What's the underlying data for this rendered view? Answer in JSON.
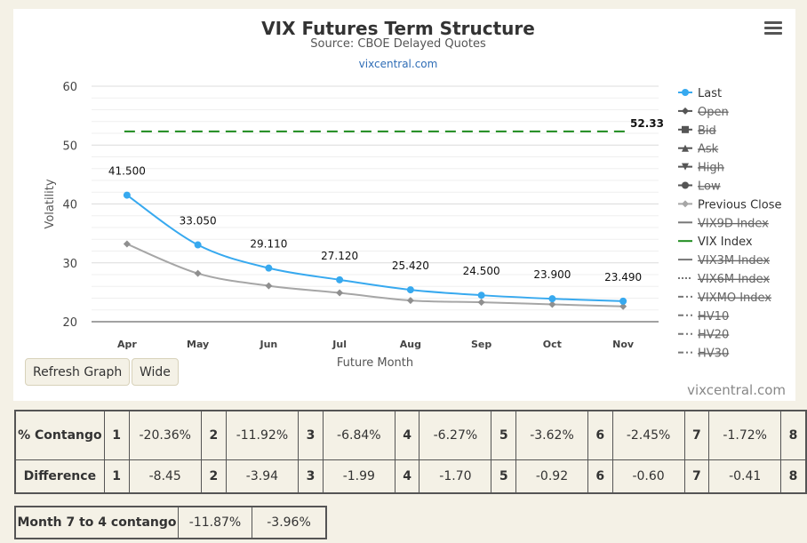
{
  "chart_data": {
    "type": "line",
    "title": "VIX Futures Term Structure",
    "subtitle": "Source: CBOE Delayed Quotes",
    "link": "vixcentral.com",
    "credit": "vixcentral.com",
    "xlabel": "Future Month",
    "ylabel": "Volatility",
    "ylim": [
      20,
      60
    ],
    "yticks": [
      20,
      30,
      40,
      50,
      60
    ],
    "grid": true,
    "legend_position": "right",
    "categories": [
      "Apr",
      "May",
      "Jun",
      "Jul",
      "Aug",
      "Sep",
      "Oct",
      "Nov"
    ],
    "series": [
      {
        "name": "Last",
        "values": [
          41.5,
          33.05,
          29.11,
          27.12,
          25.42,
          24.5,
          23.9,
          23.49
        ],
        "labels": [
          "41.500",
          "33.050",
          "29.110",
          "27.120",
          "25.420",
          "24.500",
          "23.900",
          "23.490"
        ],
        "color": "#37a9ef"
      },
      {
        "name": "Previous Close",
        "values": [
          33.2,
          28.2,
          26.1,
          24.9,
          23.6,
          23.3,
          22.95,
          22.6
        ],
        "color": "#a6a6a6"
      },
      {
        "name": "VIX Index",
        "values": [
          52.33,
          52.33,
          52.33,
          52.33,
          52.33,
          52.33,
          52.33,
          52.33
        ],
        "end_label": "52.33",
        "color": "#1d8a1d"
      }
    ],
    "legend": [
      {
        "label": "Last",
        "symbol": "circle-line",
        "color": "#37a9ef",
        "hidden": false
      },
      {
        "label": "Open",
        "symbol": "diamond-line",
        "color": "#555555",
        "hidden": true
      },
      {
        "label": "Bid",
        "symbol": "square-line",
        "color": "#555555",
        "hidden": true
      },
      {
        "label": "Ask",
        "symbol": "triangle-line",
        "color": "#555555",
        "hidden": true
      },
      {
        "label": "High",
        "symbol": "triangle-down-line",
        "color": "#555555",
        "hidden": true
      },
      {
        "label": "Low",
        "symbol": "circle-line",
        "color": "#555555",
        "hidden": true
      },
      {
        "label": "Previous Close",
        "symbol": "diamond-line",
        "color": "#a6a6a6",
        "hidden": false
      },
      {
        "label": "VIX9D Index",
        "symbol": "line",
        "color": "#777777",
        "hidden": true
      },
      {
        "label": "VIX Index",
        "symbol": "line",
        "color": "#1d8a1d",
        "hidden": false
      },
      {
        "label": "VIX3M Index",
        "symbol": "line",
        "color": "#777777",
        "hidden": true
      },
      {
        "label": "VIX6M Index",
        "symbol": "dotted-line",
        "color": "#777777",
        "hidden": true
      },
      {
        "label": "VIXMO Index",
        "symbol": "dashdot-line",
        "color": "#777777",
        "hidden": true
      },
      {
        "label": "HV10",
        "symbol": "dashdot-line",
        "color": "#777777",
        "hidden": true
      },
      {
        "label": "HV20",
        "symbol": "dashdot-line",
        "color": "#777777",
        "hidden": true
      },
      {
        "label": "HV30",
        "symbol": "dashdot-line",
        "color": "#777777",
        "hidden": true
      }
    ]
  },
  "buttons": {
    "refresh": "Refresh Graph",
    "wide": "Wide"
  },
  "icons": {
    "menu": "hamburger-menu-icon"
  },
  "contango_table": {
    "row1_label": "% Contango",
    "row2_label": "Difference",
    "nums": [
      "1",
      "2",
      "3",
      "4",
      "5",
      "6",
      "7",
      "8"
    ],
    "contango": [
      "-20.36%",
      "-11.92%",
      "-6.84%",
      "-6.27%",
      "-3.62%",
      "-2.45%",
      "-1.72%"
    ],
    "difference": [
      "-8.45",
      "-3.94",
      "-1.99",
      "-1.70",
      "-0.92",
      "-0.60",
      "-0.41"
    ]
  },
  "month_table": {
    "label": "Month 7 to 4 contango",
    "values": [
      "-11.87%",
      "-3.96%"
    ]
  }
}
